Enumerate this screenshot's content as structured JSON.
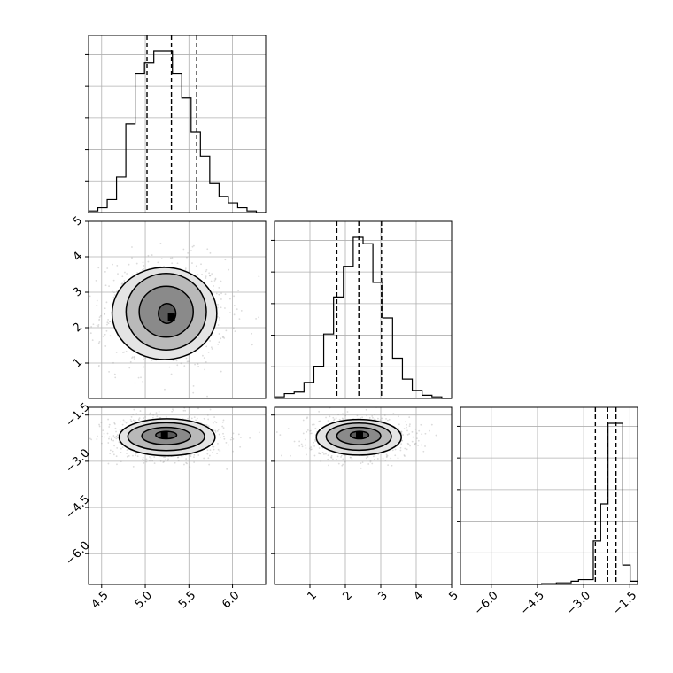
{
  "chart_data": {
    "type": "corner",
    "parameters": [
      {
        "index": 0,
        "range": [
          4.35,
          6.38
        ],
        "ticks": [
          4.5,
          5.0,
          5.5,
          6.0
        ],
        "tick_labels": [
          "4.5",
          "5.0",
          "5.5",
          "6.0"
        ],
        "quantiles": [
          5.02,
          5.3,
          5.59
        ],
        "histogram": [
          1,
          3,
          8,
          22,
          55,
          86,
          93,
          100,
          100,
          86,
          71,
          50,
          35,
          18,
          10,
          6,
          3,
          1,
          0
        ]
      },
      {
        "index": 1,
        "range": [
          0.0,
          5.0
        ],
        "ticks": [
          1,
          2,
          3,
          4,
          5
        ],
        "tick_labels": [
          "1",
          "2",
          "3",
          "4",
          "5"
        ],
        "quantiles": [
          1.76,
          2.38,
          3.02
        ],
        "histogram": [
          1,
          3,
          4,
          10,
          20,
          40,
          63,
          82,
          100,
          96,
          72,
          50,
          25,
          12,
          5,
          2,
          1,
          0
        ]
      },
      {
        "index": 2,
        "range": [
          -7.0,
          -1.25
        ],
        "ticks": [
          -6.0,
          -4.5,
          -3.0,
          -1.5
        ],
        "tick_labels": [
          "−6.0",
          "−4.5",
          "−3.0",
          "−1.5"
        ],
        "quantiles": [
          -2.62,
          -2.22,
          -1.95
        ],
        "histogram": [
          0,
          0,
          0,
          0,
          0,
          0,
          0,
          0,
          0,
          0,
          0,
          0.5,
          0.5,
          1,
          1,
          2,
          3,
          3,
          27,
          50,
          100,
          100,
          12,
          2
        ]
      }
    ],
    "pairs": [
      {
        "x_param": 0,
        "y_param": 1,
        "peak": [
          5.3,
          2.3
        ],
        "contours": [
          {
            "cx": 5.25,
            "cy": 2.4,
            "rx": 0.1,
            "ry": 0.28
          },
          {
            "cx": 5.24,
            "cy": 2.45,
            "rx": 0.31,
            "ry": 0.72
          },
          {
            "cx": 5.24,
            "cy": 2.45,
            "rx": 0.46,
            "ry": 1.08
          },
          {
            "cx": 5.22,
            "cy": 2.4,
            "rx": 0.6,
            "ry": 1.3
          }
        ]
      },
      {
        "x_param": 0,
        "y_param": 2,
        "peak": [
          5.22,
          -2.15
        ],
        "contours": [
          {
            "cx": 5.24,
            "cy": -2.15,
            "rx": 0.12,
            "ry": 0.12
          },
          {
            "cx": 5.24,
            "cy": -2.18,
            "rx": 0.28,
            "ry": 0.28
          },
          {
            "cx": 5.24,
            "cy": -2.2,
            "rx": 0.44,
            "ry": 0.45
          },
          {
            "cx": 5.25,
            "cy": -2.22,
            "rx": 0.55,
            "ry": 0.6
          }
        ]
      },
      {
        "x_param": 1,
        "y_param": 2,
        "peak": [
          2.4,
          -2.15
        ],
        "contours": [
          {
            "cx": 2.4,
            "cy": -2.15,
            "rx": 0.26,
            "ry": 0.12
          },
          {
            "cx": 2.38,
            "cy": -2.18,
            "rx": 0.62,
            "ry": 0.28
          },
          {
            "cx": 2.38,
            "cy": -2.2,
            "rx": 0.92,
            "ry": 0.44
          },
          {
            "cx": 2.38,
            "cy": -2.22,
            "rx": 1.2,
            "ry": 0.58
          }
        ]
      }
    ],
    "grid": true,
    "legend": "none"
  }
}
